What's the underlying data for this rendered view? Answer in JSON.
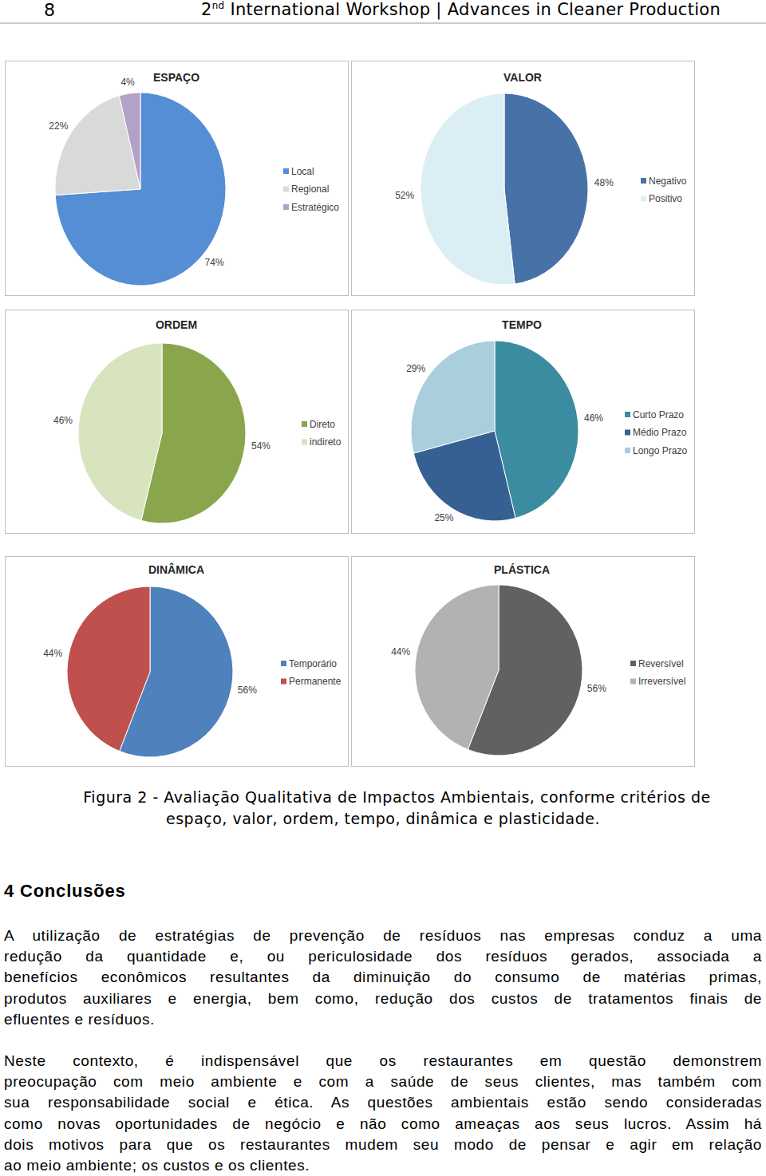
{
  "header": {
    "page": 8,
    "title": "2",
    "title_sup": "nd",
    "title_rest": " International Workshop | Advances in Cleaner Production"
  },
  "chart_data": [
    {
      "type": "pie",
      "title": "ESPAÇO",
      "categories": [
        "Local",
        "Regional",
        "Estratégico"
      ],
      "values": [
        74,
        22,
        4
      ],
      "value_labels": [
        "74%",
        "22%",
        "4%"
      ],
      "colors": [
        "#558ed5",
        "#d9d9d9",
        "#b3a2c7"
      ],
      "data_labels": true,
      "legend": "right"
    },
    {
      "type": "pie",
      "title": "VALOR",
      "categories": [
        "Negativo",
        "Positivo"
      ],
      "values": [
        48,
        52
      ],
      "value_labels": [
        "48%",
        "52%"
      ],
      "colors": [
        "#4672a8",
        "#dbeef4"
      ],
      "data_labels": true,
      "legend": "right"
    },
    {
      "type": "pie",
      "title": "ORDEM",
      "categories": [
        "Direto",
        "indireto"
      ],
      "values": [
        54,
        46
      ],
      "value_labels": [
        "54%",
        "46%"
      ],
      "colors": [
        "#8aa64d",
        "#d7e4bd"
      ],
      "data_labels": true,
      "legend": "right"
    },
    {
      "type": "pie",
      "title": "TEMPO",
      "categories": [
        "Curto Prazo",
        "Médio Prazo",
        "Longo Prazo"
      ],
      "values": [
        46,
        25,
        29
      ],
      "value_labels": [
        "46%",
        "25%",
        "29%"
      ],
      "colors": [
        "#3b8ca0",
        "#376092",
        "#a9cedc"
      ],
      "data_labels": true,
      "legend": "right"
    },
    {
      "type": "pie",
      "title": "DINÂMICA",
      "categories": [
        "Temporário",
        "Permanente"
      ],
      "values": [
        56,
        44
      ],
      "value_labels": [
        "56%",
        "44%"
      ],
      "colors": [
        "#4f81bd",
        "#c0504d"
      ],
      "data_labels": true,
      "legend": "right"
    },
    {
      "type": "pie",
      "title": "PLÁSTICA",
      "categories": [
        "Reversível",
        "Irreversível"
      ],
      "values": [
        56,
        44
      ],
      "value_labels": [
        "56%",
        "44%"
      ],
      "colors": [
        "#616161",
        "#b2b2b2"
      ],
      "data_labels": true,
      "legend": "right"
    }
  ],
  "caption": [
    "Figura 2 - Avaliação Qualitativa de Impactos Ambientais, conforme critérios de",
    "espaço, valor, ordem, tempo, dinâmica e plasticidade."
  ],
  "section": {
    "title": "4 Conclusões",
    "paragraphs": [
      [
        "A utilização de estratégias de prevenção de resíduos nas empresas conduz a uma",
        "redução da quantidade e, ou periculosidade dos resíduos gerados, associada a",
        "benefícios econômicos resultantes da diminuição do consumo de matérias primas,",
        "produtos auxiliares e energia, bem como, redução dos custos de tratamentos finais de",
        "efluentes e resíduos."
      ],
      [
        "Neste contexto, é indispensável que os restaurantes em questão demonstrem",
        "preocupação com meio ambiente e com a saúde de seus clientes, mas também com",
        "sua responsabilidade social e ética. As questões ambientais estão sendo consideradas",
        "como novas oportunidades de negócio e não como ameaças aos seus lucros. Assim há",
        "dois motivos para que os restaurantes mudem seu modo de pensar e agir em relação",
        "ao meio ambiente; os custos e os clientes."
      ]
    ]
  }
}
